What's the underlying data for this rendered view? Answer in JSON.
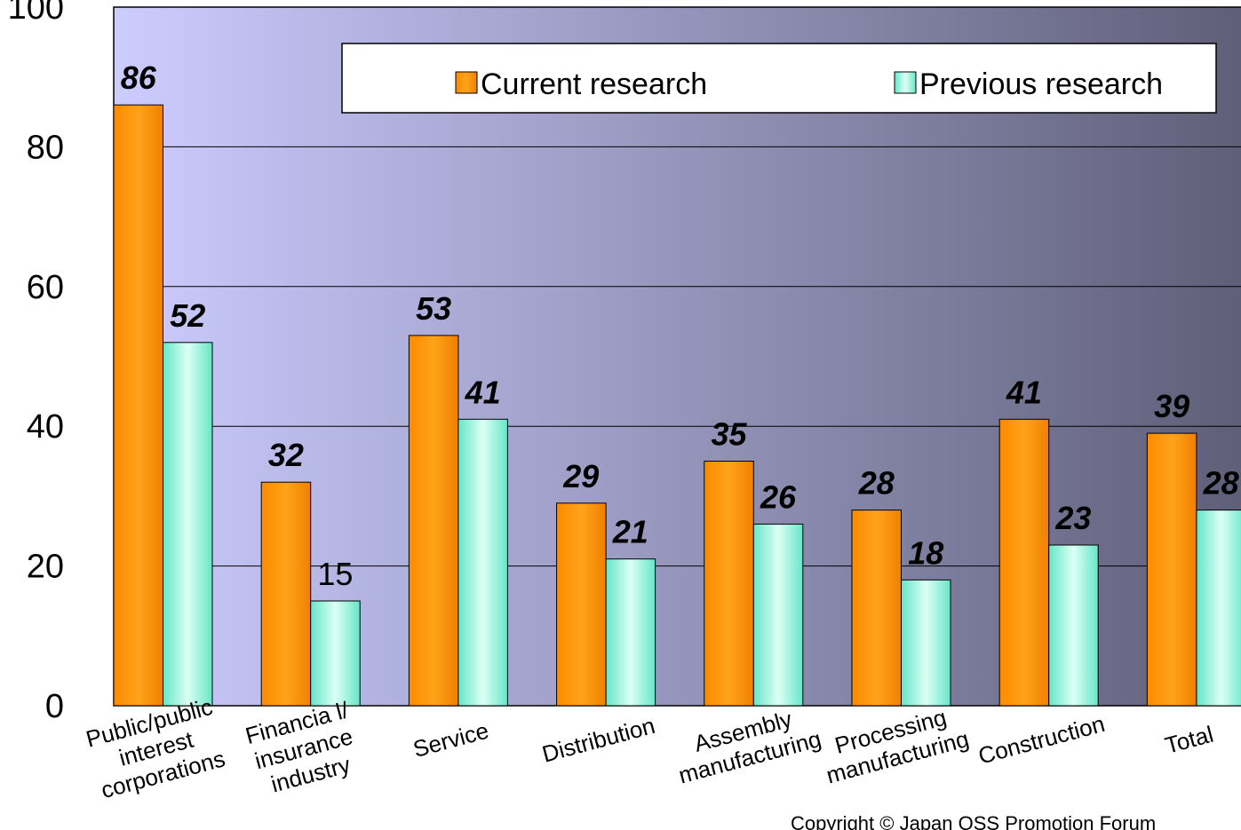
{
  "chart_data": {
    "type": "bar",
    "categories": [
      "Public/public interest corporations",
      "Financia l/ insurance industry",
      "Service",
      "Distribution",
      "Assembly manufacturing",
      "Processing manufacturing",
      "Construction",
      "Total"
    ],
    "category_lines": [
      [
        "Public/public",
        "interest",
        "corporations"
      ],
      [
        "Financia l/",
        "insurance",
        "industry"
      ],
      [
        "Service"
      ],
      [
        "Distribution"
      ],
      [
        "Assembly",
        "manufacturing"
      ],
      [
        "Processing",
        "manufacturing"
      ],
      [
        "Construction"
      ],
      [
        "Total"
      ]
    ],
    "series": [
      {
        "name": "Current research",
        "values": [
          86,
          32,
          53,
          29,
          35,
          28,
          41,
          39
        ],
        "labels": [
          "86",
          "32",
          "53",
          "29",
          "35",
          "28",
          "41",
          "39"
        ],
        "color": "#ff9900"
      },
      {
        "name": "Previous research",
        "values": [
          52,
          15,
          41,
          21,
          26,
          18,
          23,
          28
        ],
        "labels": [
          "52",
          "15",
          "41",
          "21",
          "26",
          "18",
          "23",
          "28"
        ],
        "color": "#66e0c8"
      }
    ],
    "ylim": [
      0,
      100
    ],
    "yticks": [
      "0",
      "20",
      "40",
      "60",
      "80",
      "100"
    ],
    "grid": true,
    "legend_position": "top-right",
    "plot_background": {
      "left": "#ccccff",
      "right": "#5e5e78"
    },
    "title": "",
    "xlabel": "",
    "ylabel": ""
  },
  "copyright": "Copyright © Japan OSS Promotion Forum"
}
